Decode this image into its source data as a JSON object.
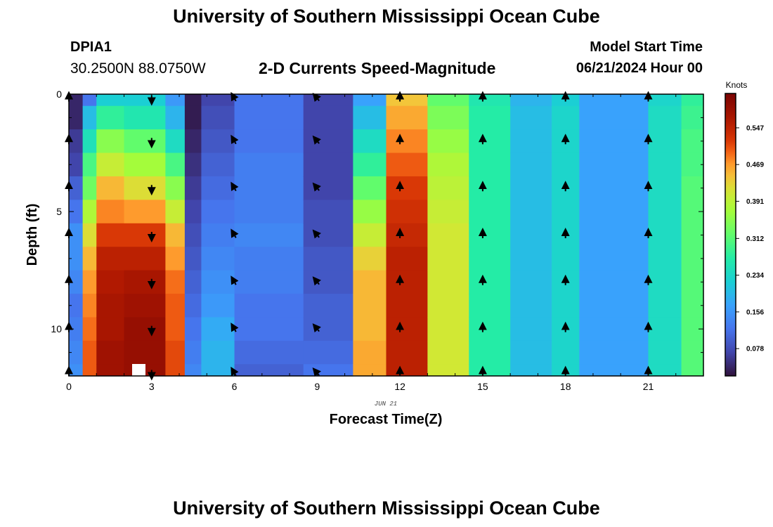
{
  "header": {
    "title": "University of Southern Mississippi Ocean Cube",
    "station_id": "DPIA1",
    "coords": "30.2500N  88.0750W",
    "chart_title": "2-D Currents Speed-Magnitude",
    "model_start_label": "Model Start Time",
    "model_start_value": "06/21/2024 Hour 00"
  },
  "footer": {
    "title": "University of Southern Mississippi Ocean Cube"
  },
  "chart_data": {
    "type": "heatmap",
    "title": "2-D Currents Speed-Magnitude",
    "xlabel": "Forecast Time(Z)",
    "ylabel": "Depth (ft)",
    "date_label": "JUN 21",
    "x_range": [
      0,
      23
    ],
    "y_range": [
      0,
      12
    ],
    "x_ticks": [
      0,
      3,
      6,
      9,
      12,
      15,
      18,
      21
    ],
    "y_ticks": [
      0,
      5,
      10
    ],
    "colorbar": {
      "label": "Knots",
      "ticks": [
        0.078,
        0.156,
        0.234,
        0.312,
        0.391,
        0.469,
        0.547
      ],
      "range": [
        0.02,
        0.62
      ]
    },
    "depths": [
      0,
      1,
      2,
      3,
      4,
      5,
      6,
      7,
      8,
      9,
      10,
      11,
      12
    ],
    "speed_profiles": [
      [
        0.04,
        0.04,
        0.06,
        0.07,
        0.1,
        0.12,
        0.15,
        0.15,
        0.14,
        0.12,
        0.13,
        0.14,
        0.15
      ],
      [
        0.12,
        0.2,
        0.25,
        0.3,
        0.33,
        0.38,
        0.42,
        0.45,
        0.47,
        0.48,
        0.49,
        0.5,
        0.5
      ],
      [
        0.22,
        0.28,
        0.35,
        0.4,
        0.45,
        0.48,
        0.52,
        0.55,
        0.56,
        0.57,
        0.57,
        0.58,
        0.58
      ],
      [
        0.22,
        0.26,
        0.32,
        0.37,
        0.42,
        0.47,
        0.52,
        0.55,
        0.57,
        0.58,
        0.59,
        0.59,
        0.59
      ],
      [
        0.16,
        0.19,
        0.24,
        0.3,
        0.35,
        0.4,
        0.45,
        0.47,
        0.49,
        0.5,
        0.5,
        0.51,
        0.51
      ],
      [
        0.03,
        0.03,
        0.04,
        0.05,
        0.06,
        0.07,
        0.08,
        0.09,
        0.1,
        0.11,
        0.12,
        0.13,
        0.14
      ],
      [
        0.07,
        0.08,
        0.09,
        0.1,
        0.11,
        0.12,
        0.13,
        0.14,
        0.15,
        0.16,
        0.18,
        0.19,
        0.19
      ],
      [
        0.12,
        0.12,
        0.12,
        0.13,
        0.13,
        0.13,
        0.14,
        0.13,
        0.13,
        0.12,
        0.12,
        0.11,
        0.1
      ],
      [
        0.07,
        0.07,
        0.07,
        0.07,
        0.07,
        0.08,
        0.08,
        0.09,
        0.09,
        0.1,
        0.1,
        0.11,
        0.12
      ],
      [
        0.17,
        0.2,
        0.24,
        0.28,
        0.32,
        0.36,
        0.4,
        0.43,
        0.45,
        0.45,
        0.45,
        0.46,
        0.46
      ],
      [
        0.44,
        0.46,
        0.48,
        0.5,
        0.52,
        0.53,
        0.54,
        0.55,
        0.55,
        0.55,
        0.55,
        0.55,
        0.55
      ],
      [
        0.32,
        0.34,
        0.36,
        0.38,
        0.39,
        0.4,
        0.41,
        0.41,
        0.41,
        0.41,
        0.41,
        0.41,
        0.41
      ],
      [
        0.26,
        0.27,
        0.27,
        0.27,
        0.27,
        0.27,
        0.27,
        0.27,
        0.27,
        0.27,
        0.27,
        0.27,
        0.27
      ],
      [
        0.19,
        0.2,
        0.2,
        0.2,
        0.2,
        0.2,
        0.2,
        0.2,
        0.2,
        0.2,
        0.2,
        0.2,
        0.2
      ],
      [
        0.22,
        0.23,
        0.23,
        0.23,
        0.23,
        0.23,
        0.23,
        0.23,
        0.23,
        0.23,
        0.23,
        0.23,
        0.23
      ],
      [
        0.17,
        0.17,
        0.17,
        0.17,
        0.17,
        0.17,
        0.17,
        0.17,
        0.17,
        0.17,
        0.17,
        0.17,
        0.17
      ],
      [
        0.23,
        0.24,
        0.24,
        0.24,
        0.24,
        0.24,
        0.24,
        0.24,
        0.24,
        0.24,
        0.24,
        0.24,
        0.24
      ],
      [
        0.28,
        0.29,
        0.3,
        0.3,
        0.31,
        0.31,
        0.31,
        0.31,
        0.31,
        0.31,
        0.31,
        0.31,
        0.31
      ]
    ],
    "bands": [
      {
        "start": 0,
        "end": 0.5,
        "profile": 0
      },
      {
        "start": 0.5,
        "end": 1.0,
        "profile": 1
      },
      {
        "start": 1.0,
        "end": 2.0,
        "profile": 2
      },
      {
        "start": 2.0,
        "end": 3.5,
        "profile": 3
      },
      {
        "start": 3.5,
        "end": 4.2,
        "profile": 4
      },
      {
        "start": 4.2,
        "end": 4.8,
        "profile": 5
      },
      {
        "start": 4.8,
        "end": 6.0,
        "profile": 6
      },
      {
        "start": 6.0,
        "end": 8.5,
        "profile": 7
      },
      {
        "start": 8.5,
        "end": 10.3,
        "profile": 8
      },
      {
        "start": 10.3,
        "end": 11.5,
        "profile": 9
      },
      {
        "start": 11.5,
        "end": 13.0,
        "profile": 10
      },
      {
        "start": 13.0,
        "end": 14.5,
        "profile": 11
      },
      {
        "start": 14.5,
        "end": 16.0,
        "profile": 12
      },
      {
        "start": 16.0,
        "end": 17.5,
        "profile": 13
      },
      {
        "start": 17.5,
        "end": 18.5,
        "profile": 14
      },
      {
        "start": 18.5,
        "end": 21.0,
        "profile": 15
      },
      {
        "start": 21.0,
        "end": 22.2,
        "profile": 16
      },
      {
        "start": 22.2,
        "end": 23.0,
        "profile": 17
      }
    ],
    "vectors": [
      {
        "hour": 0,
        "angle": 0
      },
      {
        "hour": 3,
        "angle": 180
      },
      {
        "hour": 6,
        "angle": -30
      },
      {
        "hour": 9,
        "angle": -40
      },
      {
        "hour": 12,
        "angle": 0
      },
      {
        "hour": 15,
        "angle": 0
      },
      {
        "hour": 18,
        "angle": 0
      },
      {
        "hour": 21,
        "angle": 0
      }
    ],
    "vector_depths": [
      0,
      2,
      4,
      6,
      8,
      10,
      12
    ]
  }
}
